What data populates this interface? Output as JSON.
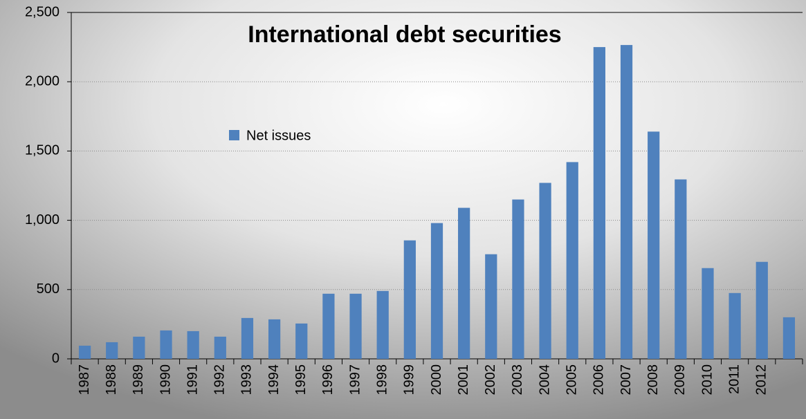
{
  "chart_data": {
    "type": "bar",
    "title": "International debt securities",
    "categories": [
      "1987",
      "1988",
      "1989",
      "1990",
      "1991",
      "1992",
      "1993",
      "1994",
      "1995",
      "1996",
      "1997",
      "1998",
      "1999",
      "2000",
      "2001",
      "2002",
      "2003",
      "2004",
      "2005",
      "2006",
      "2007",
      "2008",
      "2009",
      "2010",
      "2011",
      "2012",
      null
    ],
    "series": [
      {
        "name": "Net issues",
        "color": "#4f81bd",
        "values": [
          95,
          120,
          160,
          205,
          200,
          160,
          295,
          285,
          255,
          470,
          470,
          490,
          855,
          980,
          1090,
          755,
          1150,
          1270,
          1420,
          2250,
          2265,
          1640,
          1295,
          655,
          475,
          700,
          300
        ]
      }
    ],
    "ylim": [
      0,
      2500
    ],
    "yticks": [
      0,
      500,
      {
        "value": 1000,
        "label": "1,000"
      },
      {
        "value": 1500,
        "label": "1,500"
      },
      {
        "value": 2000,
        "label": "2,000"
      },
      {
        "value": 2500,
        "label": "2,500"
      }
    ],
    "grid": true
  }
}
